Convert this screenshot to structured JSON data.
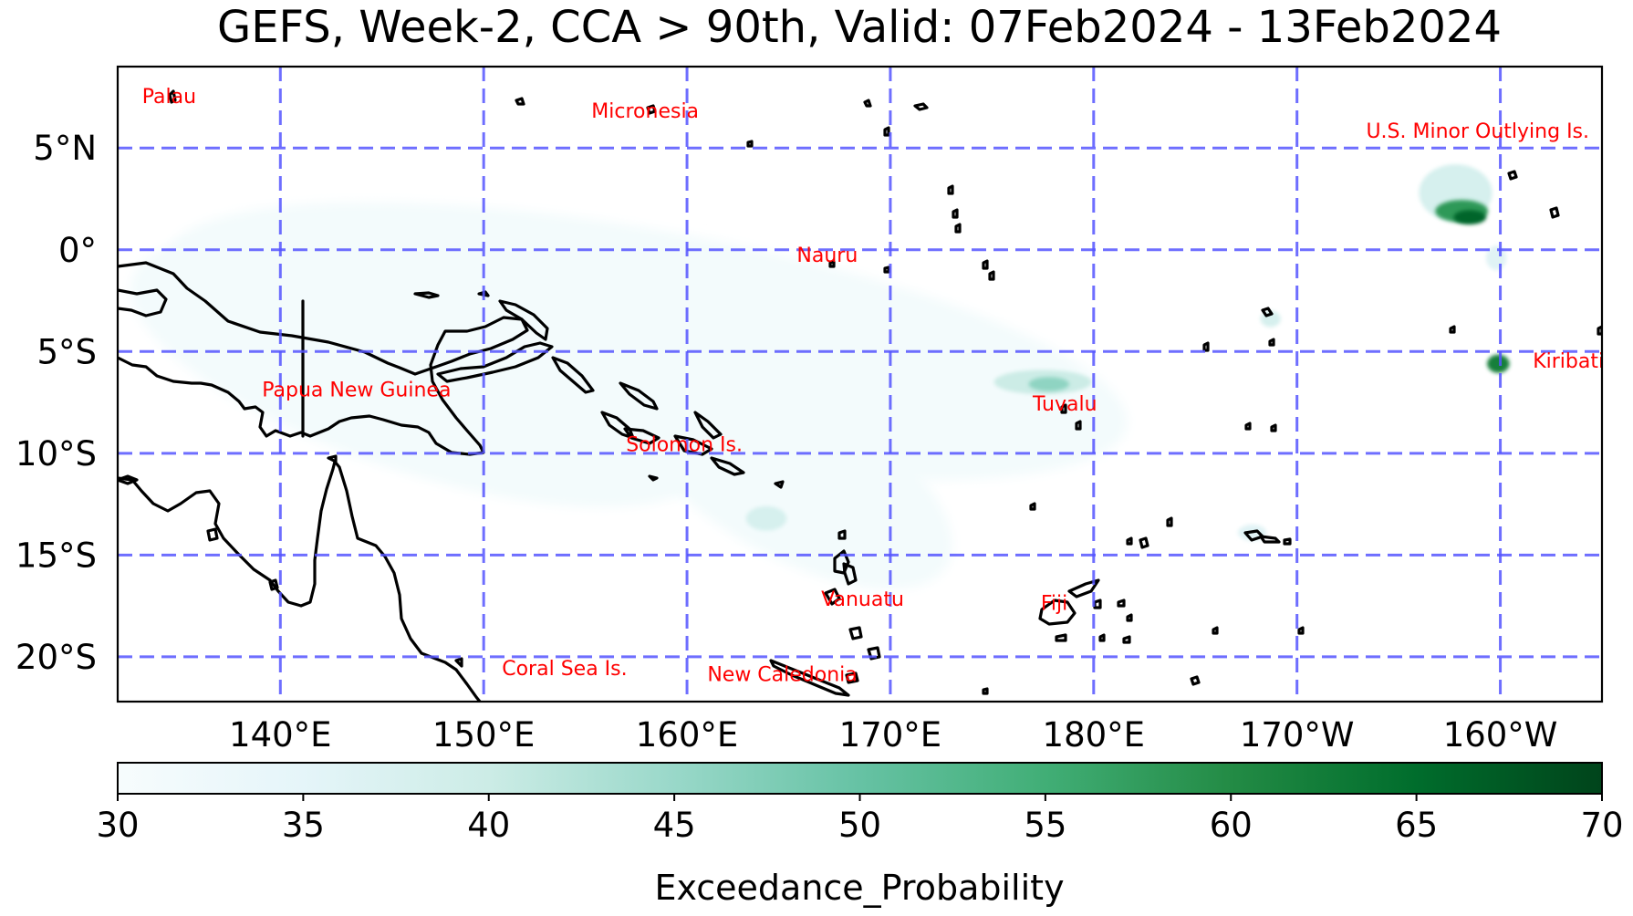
{
  "title": "GEFS, Week-2, CCA > 90th, Valid: 07Feb2024 - 13Feb2024",
  "map": {
    "extent": {
      "lon_min": 132,
      "lon_max": 205,
      "lat_min": -22.2,
      "lat_max": 9
    },
    "gridline_color": "#5555ff",
    "coastline_color": "#000000",
    "lon_ticks": [
      {
        "lon": 140,
        "label": "140°E"
      },
      {
        "lon": 150,
        "label": "150°E"
      },
      {
        "lon": 160,
        "label": "160°E"
      },
      {
        "lon": 170,
        "label": "170°E"
      },
      {
        "lon": 180,
        "label": "180°E"
      },
      {
        "lon": 190,
        "label": "170°W"
      },
      {
        "lon": 200,
        "label": "160°W"
      }
    ],
    "lat_ticks": [
      {
        "lat": 5,
        "label": "5°N"
      },
      {
        "lat": 0,
        "label": "0°"
      },
      {
        "lat": -5,
        "label": "5°S"
      },
      {
        "lat": -10,
        "label": "10°S"
      },
      {
        "lat": -15,
        "label": "15°S"
      },
      {
        "lat": -20,
        "label": "20°S"
      }
    ],
    "place_label_color": "#ff0000",
    "place_labels": [
      {
        "name": "Palau",
        "lon": 133.2,
        "lat": 7.2
      },
      {
        "name": "Micronesia",
        "lon": 155.3,
        "lat": 6.5
      },
      {
        "name": "U.S. Minor Outlying Is.",
        "lon": 193.4,
        "lat": 5.5
      },
      {
        "name": "Nauru",
        "lon": 165.4,
        "lat": -0.6
      },
      {
        "name": "Papua New Guinea",
        "lon": 139.1,
        "lat": -7.2
      },
      {
        "name": "Kiribati",
        "lon": 201.6,
        "lat": -5.8
      },
      {
        "name": "Tuvalu",
        "lon": 177.0,
        "lat": -7.9
      },
      {
        "name": "Solomon Is.",
        "lon": 157.0,
        "lat": -9.9
      },
      {
        "name": "Vanuatu",
        "lon": 166.6,
        "lat": -17.5
      },
      {
        "name": "Fiji",
        "lon": 177.4,
        "lat": -17.7
      },
      {
        "name": "Coral Sea Is.",
        "lon": 150.9,
        "lat": -20.9
      },
      {
        "name": "New Caledonia",
        "lon": 161.0,
        "lat": -21.2
      }
    ]
  },
  "colorbar": {
    "label": "Exceedance_Probability",
    "min": 30,
    "max": 70,
    "ticks": [
      "30",
      "35",
      "40",
      "45",
      "50",
      "55",
      "60",
      "65",
      "70"
    ],
    "colors": [
      "#f7fcfd",
      "#e5f5f9",
      "#ccece6",
      "#99d8c9",
      "#66c2a4",
      "#41ae76",
      "#238b45",
      "#006d2c",
      "#00441b"
    ]
  },
  "probability_areas": [
    {
      "name": "equatorial-band",
      "lon": 158,
      "lat": -4.5,
      "rlon": 24,
      "rlat": 5.5,
      "rot": 10,
      "p": 31
    },
    {
      "name": "png-band",
      "lon": 147,
      "lat": -6,
      "rlon": 15,
      "rlat": 5,
      "rot": 18,
      "p": 31
    },
    {
      "name": "solomon-vanuatu-band",
      "lon": 165,
      "lat": -11,
      "rlon": 9,
      "rlat": 4,
      "rot": 30,
      "p": 31
    },
    {
      "name": "tuvalu-patch",
      "lon": 177.5,
      "lat": -6.5,
      "rlon": 2.4,
      "rlat": 0.6,
      "rot": 0,
      "p": 40
    },
    {
      "name": "tuvalu-core",
      "lon": 177.8,
      "lat": -6.6,
      "rlon": 1.0,
      "rlat": 0.35,
      "rot": 0,
      "p": 46
    },
    {
      "name": "solomon-south-patch",
      "lon": 163.9,
      "lat": -13.2,
      "rlon": 1.0,
      "rlat": 0.6,
      "rot": 0,
      "p": 38
    },
    {
      "name": "howland-patch-outer",
      "lon": 197.8,
      "lat": 2.8,
      "rlon": 1.8,
      "rlat": 1.4,
      "rot": 0,
      "p": 38
    },
    {
      "name": "howland-patch-mid",
      "lon": 198.1,
      "lat": 1.9,
      "rlon": 1.3,
      "rlat": 0.55,
      "rot": 0,
      "p": 58
    },
    {
      "name": "howland-patch-core",
      "lon": 198.5,
      "lat": 1.6,
      "rlon": 0.8,
      "rlat": 0.35,
      "rot": 0,
      "p": 66
    },
    {
      "name": "jarvis-patch",
      "lon": 199.9,
      "lat": -5.6,
      "rlon": 0.55,
      "rlat": 0.45,
      "rot": 0,
      "p": 62
    },
    {
      "name": "kiritimati-sw-patch",
      "lon": 199.8,
      "lat": -0.4,
      "rlon": 0.5,
      "rlat": 0.6,
      "rot": 0,
      "p": 36
    },
    {
      "name": "tokelau-patch",
      "lon": 188.7,
      "lat": -3.4,
      "rlon": 0.5,
      "rlat": 0.4,
      "rot": 0,
      "p": 38
    },
    {
      "name": "samoa-patch",
      "lon": 187.8,
      "lat": -13.9,
      "rlon": 0.7,
      "rlat": 0.4,
      "rot": 0,
      "p": 36
    }
  ]
}
